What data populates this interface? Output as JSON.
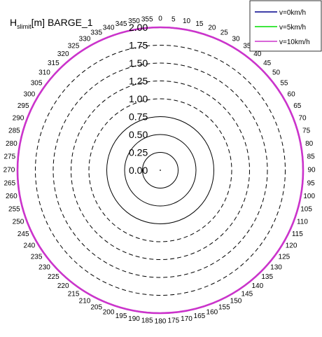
{
  "chart_data": {
    "type": "line",
    "projection": "polar",
    "title_main": "H",
    "title_sub": "slimit",
    "title_rest": "[m] BARGE_1",
    "radial_ticks": [
      0.0,
      0.25,
      0.5,
      0.75,
      1.0,
      1.25,
      1.5,
      1.75,
      2.0
    ],
    "radial_tick_labels": [
      "0.00",
      "0.25",
      "0.50",
      "0.75",
      "1.00",
      "1.25",
      "1.50",
      "1.75",
      "2.00"
    ],
    "rlim": [
      0,
      2.0
    ],
    "solid_rings": [
      0.25,
      0.5,
      0.75
    ],
    "dashed_rings": [
      1.0,
      1.25,
      1.5,
      1.75
    ],
    "angle_ticks": [
      0,
      5,
      10,
      15,
      20,
      25,
      30,
      35,
      40,
      45,
      50,
      55,
      60,
      65,
      70,
      75,
      80,
      85,
      90,
      95,
      100,
      105,
      110,
      115,
      120,
      125,
      130,
      135,
      140,
      145,
      150,
      155,
      160,
      165,
      170,
      175,
      180,
      185,
      190,
      195,
      200,
      205,
      210,
      215,
      220,
      225,
      230,
      235,
      240,
      245,
      250,
      255,
      260,
      265,
      270,
      275,
      280,
      285,
      290,
      295,
      300,
      305,
      310,
      315,
      320,
      325,
      330,
      335,
      340,
      345,
      350,
      355
    ],
    "angle_direction": "clockwise",
    "zero_location": "top",
    "grid": true,
    "legend_placement": "top-right",
    "series": [
      {
        "name": "v=0km/h",
        "color": "#00008b",
        "r": 2.0
      },
      {
        "name": "v=5km/h",
        "color": "#00dd00",
        "r": 2.0
      },
      {
        "name": "v=10km/h",
        "color": "#cc33cc",
        "r": 2.0
      }
    ]
  }
}
